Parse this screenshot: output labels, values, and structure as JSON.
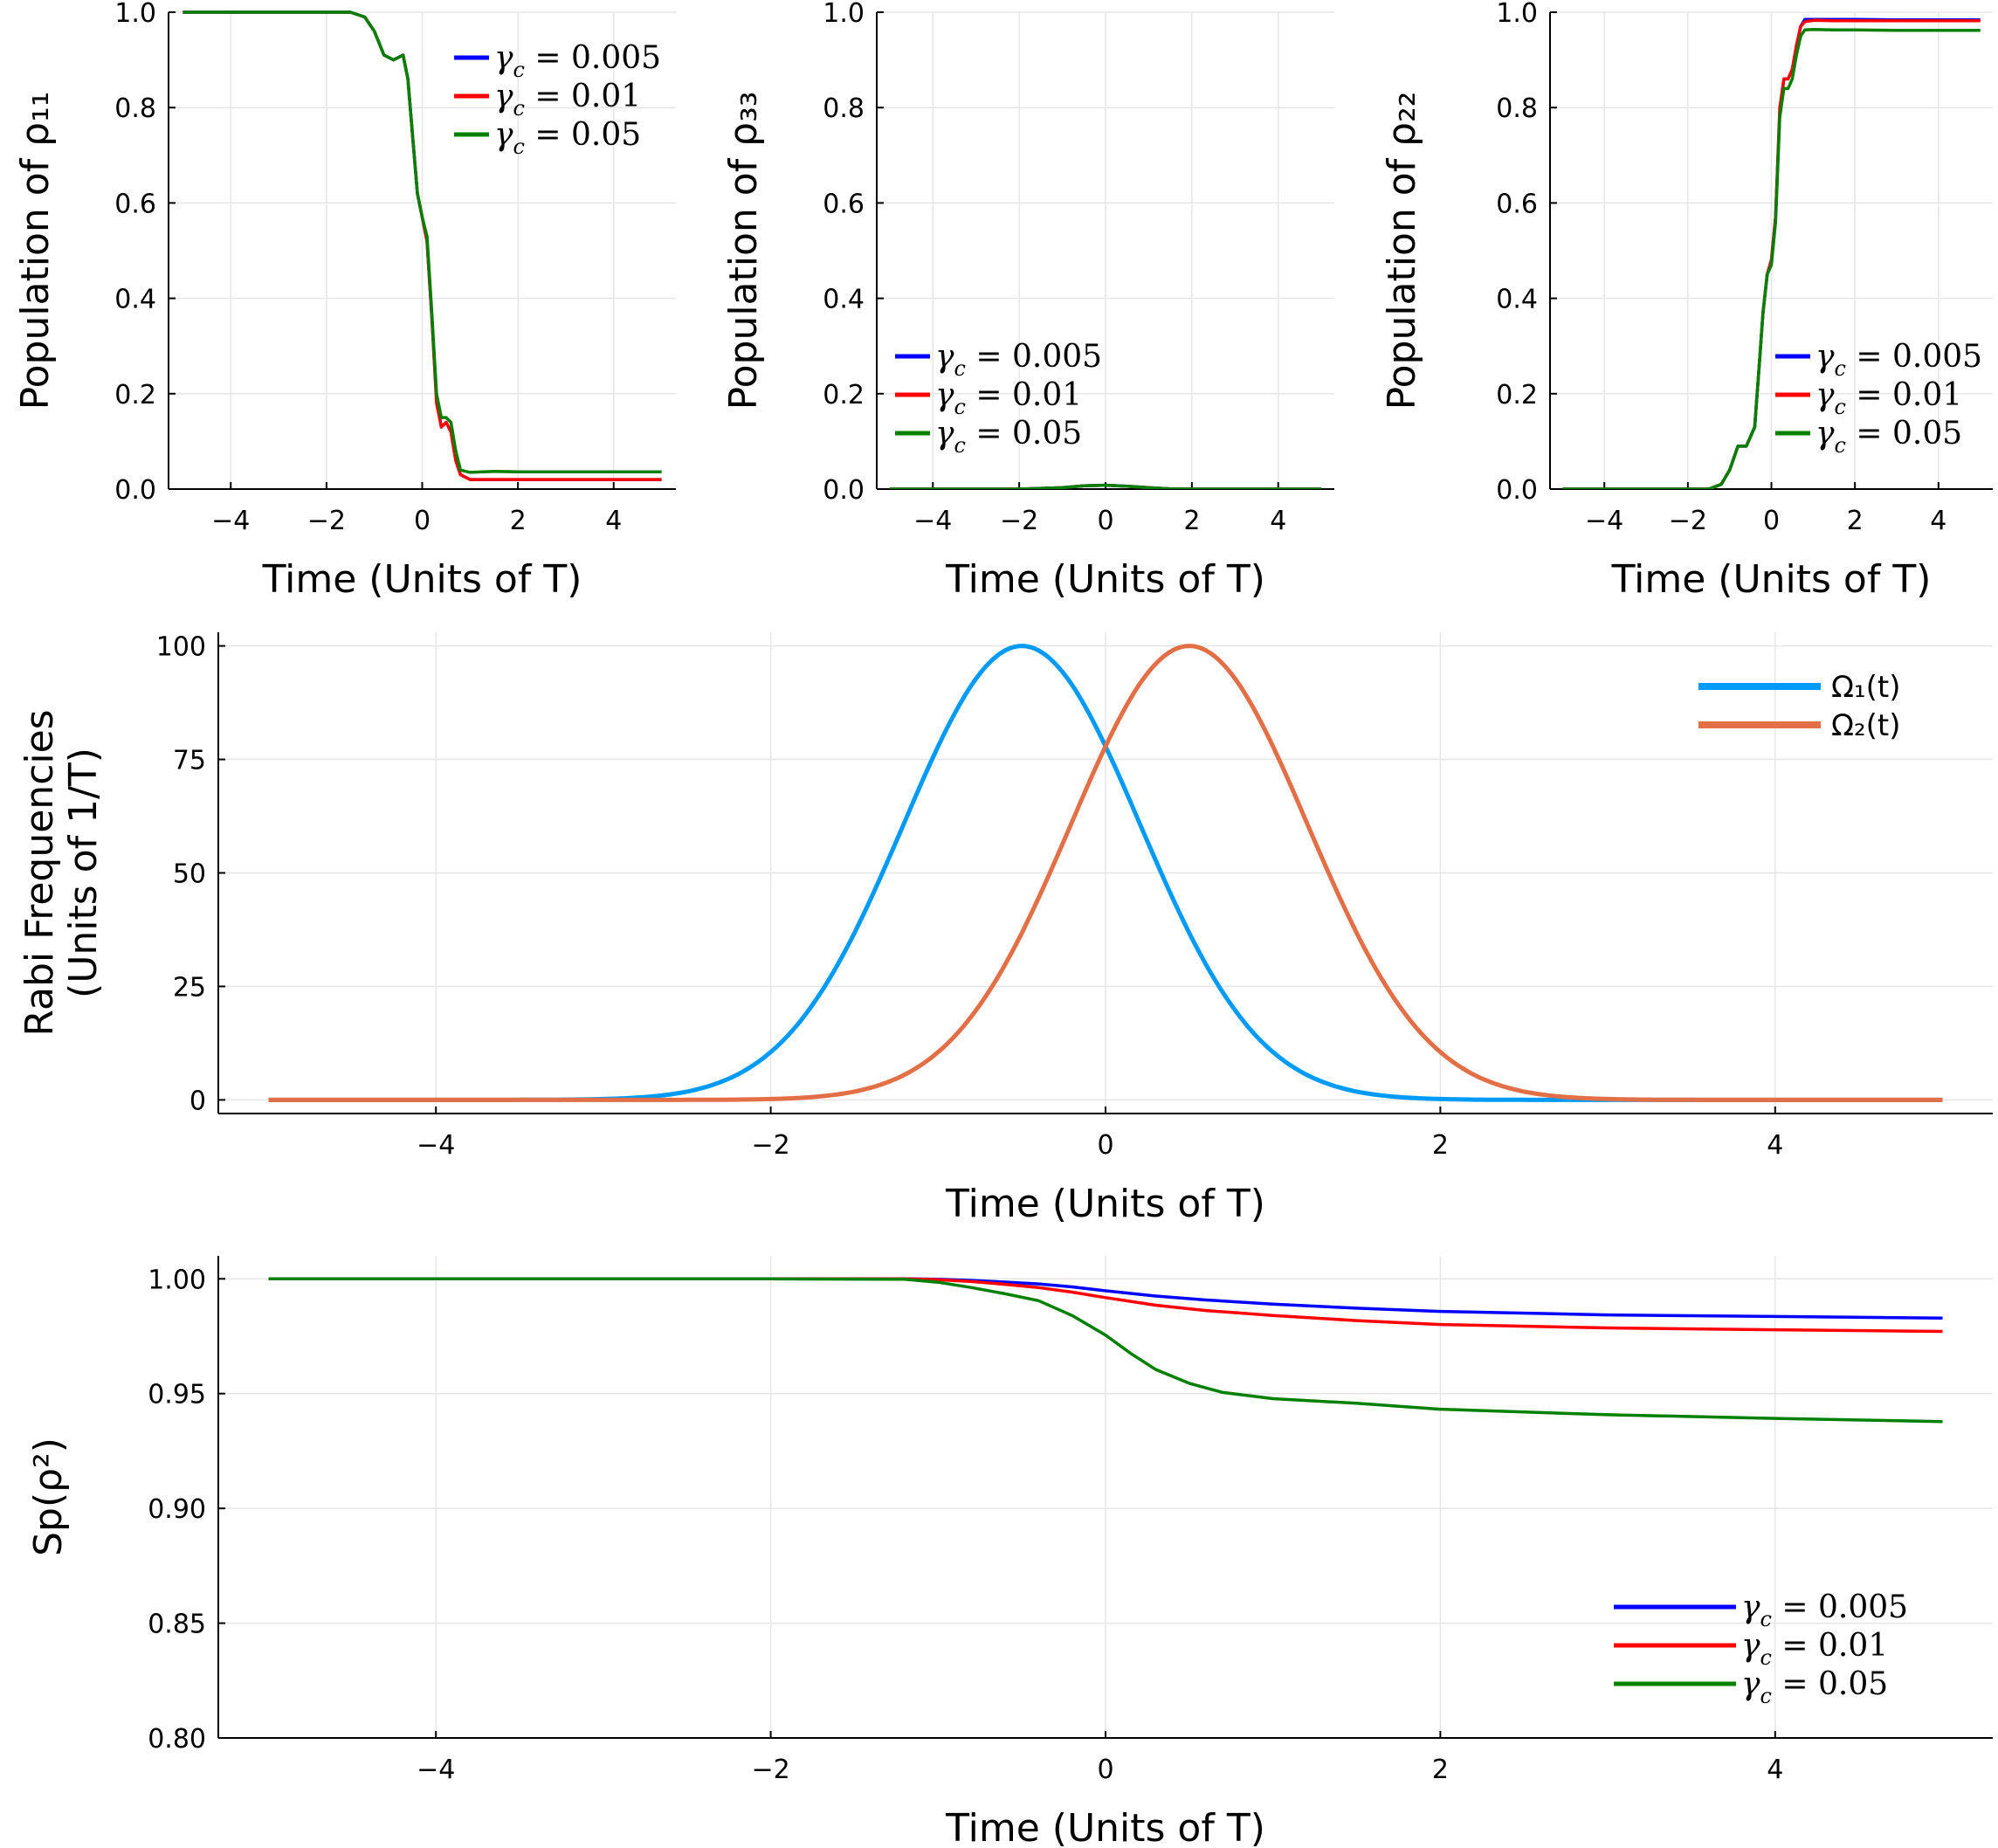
{
  "chart_data": [
    {
      "id": "p11",
      "type": "line",
      "xlabel": "Time (Units of T)",
      "ylabel": "Population of ρ₁₁",
      "xlim": [
        -5.3,
        5.3
      ],
      "ylim": [
        0.0,
        1.0
      ],
      "xticks": [
        -4,
        -2,
        0,
        2,
        4
      ],
      "xtick_labels": [
        "−4",
        "−2",
        "0",
        "2",
        "4"
      ],
      "yticks": [
        0.0,
        0.2,
        0.4,
        0.6,
        0.8,
        1.0
      ],
      "ytick_labels": [
        "0.0",
        "0.2",
        "0.4",
        "0.6",
        "0.8",
        "1.0"
      ],
      "grid": true,
      "legend_position": "top-right",
      "series": [
        {
          "name": "γc = 0.005",
          "color": "#0000ff",
          "x": [
            -5,
            -1.5,
            -1.2,
            -1.0,
            -0.8,
            -0.6,
            -0.4,
            -0.3,
            -0.2,
            -0.1,
            0.0,
            0.1,
            0.2,
            0.3,
            0.4,
            0.5,
            0.6,
            0.7,
            0.8,
            1.0,
            1.5,
            2.0,
            3.0,
            4.0,
            5.0
          ],
          "y": [
            1.0,
            1.0,
            0.99,
            0.96,
            0.91,
            0.9,
            0.91,
            0.86,
            0.74,
            0.62,
            0.57,
            0.52,
            0.36,
            0.19,
            0.13,
            0.14,
            0.12,
            0.06,
            0.03,
            0.02,
            0.02,
            0.02,
            0.02,
            0.02,
            0.02
          ]
        },
        {
          "name": "γc = 0.01",
          "color": "#ff0000",
          "x": [
            -5,
            -1.5,
            -1.2,
            -1.0,
            -0.8,
            -0.6,
            -0.4,
            -0.3,
            -0.2,
            -0.1,
            0.0,
            0.1,
            0.2,
            0.3,
            0.4,
            0.5,
            0.6,
            0.7,
            0.8,
            1.0,
            1.5,
            2.0,
            3.0,
            4.0,
            5.0
          ],
          "y": [
            1.0,
            1.0,
            0.99,
            0.96,
            0.91,
            0.9,
            0.91,
            0.86,
            0.74,
            0.62,
            0.57,
            0.52,
            0.36,
            0.18,
            0.13,
            0.14,
            0.12,
            0.06,
            0.03,
            0.02,
            0.02,
            0.02,
            0.02,
            0.02,
            0.02
          ]
        },
        {
          "name": "γc = 0.05",
          "color": "#008000",
          "x": [
            -5,
            -1.5,
            -1.2,
            -1.0,
            -0.8,
            -0.6,
            -0.4,
            -0.3,
            -0.2,
            -0.1,
            0.0,
            0.1,
            0.2,
            0.3,
            0.4,
            0.5,
            0.6,
            0.7,
            0.8,
            1.0,
            1.5,
            2.0,
            3.0,
            4.0,
            5.0
          ],
          "y": [
            1.0,
            1.0,
            0.99,
            0.96,
            0.91,
            0.9,
            0.91,
            0.86,
            0.74,
            0.62,
            0.57,
            0.53,
            0.37,
            0.2,
            0.15,
            0.15,
            0.14,
            0.08,
            0.04,
            0.035,
            0.037,
            0.036,
            0.036,
            0.036,
            0.036
          ]
        }
      ]
    },
    {
      "id": "p33",
      "type": "line",
      "xlabel": "Time (Units of T)",
      "ylabel": "Population of ρ₃₃",
      "xlim": [
        -5.3,
        5.3
      ],
      "ylim": [
        0.0,
        1.0
      ],
      "xticks": [
        -4,
        -2,
        0,
        2,
        4
      ],
      "xtick_labels": [
        "−4",
        "−2",
        "0",
        "2",
        "4"
      ],
      "yticks": [
        0.0,
        0.2,
        0.4,
        0.6,
        0.8,
        1.0
      ],
      "ytick_labels": [
        "0.0",
        "0.2",
        "0.4",
        "0.6",
        "0.8",
        "1.0"
      ],
      "grid": true,
      "legend_position": "bottom-left",
      "series": [
        {
          "name": "γc = 0.005",
          "color": "#0000ff",
          "x": [
            -5,
            -2,
            -1,
            -0.5,
            0,
            0.5,
            1,
            1.5,
            2,
            3,
            5
          ],
          "y": [
            0,
            0,
            0.003,
            0.007,
            0.008,
            0.006,
            0.003,
            0.0005,
            0,
            0,
            0
          ]
        },
        {
          "name": "γc = 0.01",
          "color": "#ff0000",
          "x": [
            -5,
            -2,
            -1,
            -0.5,
            0,
            0.5,
            1,
            1.5,
            2,
            3,
            5
          ],
          "y": [
            0,
            0,
            0.003,
            0.007,
            0.008,
            0.006,
            0.003,
            0.0005,
            0,
            0,
            0
          ]
        },
        {
          "name": "γc = 0.05",
          "color": "#008000",
          "x": [
            -5,
            -2,
            -1,
            -0.5,
            0,
            0.5,
            1,
            1.5,
            2,
            3,
            5
          ],
          "y": [
            0,
            0,
            0.003,
            0.007,
            0.008,
            0.006,
            0.003,
            0.0005,
            0,
            0,
            0
          ]
        }
      ]
    },
    {
      "id": "p22",
      "type": "line",
      "xlabel": "Time (Units of T)",
      "ylabel": "Population of ρ₂₂",
      "xlim": [
        -5.3,
        5.3
      ],
      "ylim": [
        0.0,
        1.0
      ],
      "xticks": [
        -4,
        -2,
        0,
        2,
        4
      ],
      "xtick_labels": [
        "−4",
        "−2",
        "0",
        "2",
        "4"
      ],
      "yticks": [
        0.0,
        0.2,
        0.4,
        0.6,
        0.8,
        1.0
      ],
      "ytick_labels": [
        "0.0",
        "0.2",
        "0.4",
        "0.6",
        "0.8",
        "1.0"
      ],
      "grid": true,
      "legend_position": "bottom-right",
      "series": [
        {
          "name": "γc = 0.005",
          "color": "#0000ff",
          "x": [
            -5,
            -1.5,
            -1.2,
            -1.0,
            -0.8,
            -0.6,
            -0.4,
            -0.3,
            -0.2,
            -0.1,
            0.0,
            0.1,
            0.2,
            0.3,
            0.4,
            0.5,
            0.6,
            0.7,
            0.8,
            1.0,
            1.5,
            2.0,
            3.0,
            4.0,
            5.0
          ],
          "y": [
            0.0,
            0.0,
            0.01,
            0.04,
            0.09,
            0.09,
            0.13,
            0.25,
            0.37,
            0.45,
            0.48,
            0.57,
            0.79,
            0.86,
            0.86,
            0.88,
            0.93,
            0.97,
            0.985,
            0.985,
            0.985,
            0.985,
            0.984,
            0.984,
            0.984
          ]
        },
        {
          "name": "γc = 0.01",
          "color": "#ff0000",
          "x": [
            -5,
            -1.5,
            -1.2,
            -1.0,
            -0.8,
            -0.6,
            -0.4,
            -0.3,
            -0.2,
            -0.1,
            0.0,
            0.1,
            0.2,
            0.3,
            0.4,
            0.5,
            0.6,
            0.7,
            0.8,
            1.0,
            1.5,
            2.0,
            3.0,
            4.0,
            5.0
          ],
          "y": [
            0.0,
            0.0,
            0.01,
            0.04,
            0.09,
            0.09,
            0.13,
            0.25,
            0.37,
            0.45,
            0.48,
            0.57,
            0.8,
            0.86,
            0.86,
            0.88,
            0.93,
            0.97,
            0.98,
            0.983,
            0.982,
            0.982,
            0.982,
            0.982,
            0.982
          ]
        },
        {
          "name": "γc = 0.05",
          "color": "#008000",
          "x": [
            -5,
            -1.5,
            -1.2,
            -1.0,
            -0.8,
            -0.6,
            -0.4,
            -0.3,
            -0.2,
            -0.1,
            0.0,
            0.1,
            0.2,
            0.3,
            0.4,
            0.5,
            0.6,
            0.7,
            0.8,
            1.0,
            1.5,
            2.0,
            3.0,
            4.0,
            5.0
          ],
          "y": [
            0.0,
            0.0,
            0.01,
            0.04,
            0.09,
            0.09,
            0.13,
            0.25,
            0.37,
            0.45,
            0.47,
            0.56,
            0.78,
            0.84,
            0.84,
            0.86,
            0.91,
            0.95,
            0.963,
            0.964,
            0.963,
            0.963,
            0.962,
            0.962,
            0.962
          ]
        }
      ]
    },
    {
      "id": "rabi",
      "type": "line",
      "xlabel": "Time (Units of T)",
      "ylabel": [
        "Rabi Frequencies",
        "(Units of 1/T)"
      ],
      "xlim": [
        -5.3,
        5.3
      ],
      "ylim": [
        -3,
        103
      ],
      "xticks": [
        -4,
        -2,
        0,
        2,
        4
      ],
      "xtick_labels": [
        "−4",
        "−2",
        "0",
        "2",
        "4"
      ],
      "yticks": [
        0,
        25,
        50,
        75,
        100
      ],
      "ytick_labels": [
        "0",
        "25",
        "50",
        "75",
        "100"
      ],
      "grid": true,
      "legend_position": "top-right",
      "series": [
        {
          "name": "Ω₁(t)",
          "color": "#009af9",
          "gaussian": {
            "amplitude": 100,
            "center": -0.5,
            "width": 1.0
          },
          "x_range": [
            -5,
            5
          ]
        },
        {
          "name": "Ω₂(t)",
          "color": "#e26f46",
          "gaussian": {
            "amplitude": 100,
            "center": 0.5,
            "width": 1.0
          },
          "x_range": [
            -5,
            5
          ]
        }
      ]
    },
    {
      "id": "purity",
      "type": "line",
      "xlabel": "Time (Units of T)",
      "ylabel": "Sp(ρ²)",
      "xlim": [
        -5.3,
        5.3
      ],
      "ylim": [
        0.8,
        1.01
      ],
      "xticks": [
        -4,
        -2,
        0,
        2,
        4
      ],
      "xtick_labels": [
        "−4",
        "−2",
        "0",
        "2",
        "4"
      ],
      "yticks": [
        0.8,
        0.85,
        0.9,
        0.95,
        1.0
      ],
      "ytick_labels": [
        "0.80",
        "0.85",
        "0.90",
        "0.95",
        "1.00"
      ],
      "grid": true,
      "legend_position": "bottom-right",
      "series": [
        {
          "name": "γc = 0.005",
          "color": "#0000ff",
          "x": [
            -5,
            -2,
            -1.2,
            -1.0,
            -0.8,
            -0.6,
            -0.4,
            -0.2,
            0.0,
            0.3,
            0.6,
            1.0,
            1.5,
            2.0,
            3.0,
            4.0,
            5.0
          ],
          "y": [
            1.0,
            1.0,
            1.0,
            0.9998,
            0.9993,
            0.9986,
            0.9978,
            0.9965,
            0.9948,
            0.9925,
            0.9908,
            0.989,
            0.9872,
            0.9858,
            0.9843,
            0.9836,
            0.9829
          ]
        },
        {
          "name": "γc = 0.01",
          "color": "#ff0000",
          "x": [
            -5,
            -2,
            -1.2,
            -1.0,
            -0.8,
            -0.6,
            -0.4,
            -0.2,
            0.0,
            0.3,
            0.6,
            1.0,
            1.5,
            2.0,
            3.0,
            4.0,
            5.0
          ],
          "y": [
            1.0,
            1.0,
            1.0,
            0.9996,
            0.9988,
            0.9976,
            0.9962,
            0.9942,
            0.9918,
            0.9885,
            0.9862,
            0.984,
            0.9818,
            0.9801,
            0.9786,
            0.9778,
            0.9771
          ]
        },
        {
          "name": "γc = 0.05",
          "color": "#008000",
          "x": [
            -5,
            -2,
            -1.2,
            -1.0,
            -0.8,
            -0.6,
            -0.4,
            -0.2,
            0.0,
            0.15,
            0.3,
            0.5,
            0.7,
            1.0,
            1.5,
            2.0,
            3.0,
            4.0,
            5.0
          ],
          "y": [
            1.0,
            1.0,
            0.9998,
            0.9985,
            0.9962,
            0.9935,
            0.9905,
            0.984,
            0.9755,
            0.9675,
            0.9605,
            0.9545,
            0.9505,
            0.9478,
            0.9458,
            0.9432,
            0.9408,
            0.9392,
            0.9378
          ]
        }
      ]
    }
  ]
}
